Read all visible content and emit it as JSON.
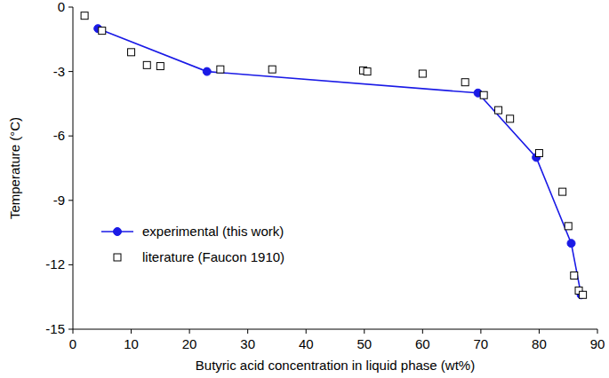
{
  "chart_data": {
    "type": "scatter",
    "x_label": "Butyric acid concentration in liquid phase (wt%)",
    "y_label": "Temperature (°C)",
    "xlim": [
      0,
      90
    ],
    "xticks": [
      0,
      10,
      20,
      30,
      40,
      50,
      60,
      70,
      80,
      90
    ],
    "ylim": [
      -15,
      0
    ],
    "yticks": [
      -15,
      -12,
      -9,
      -6,
      -3,
      0
    ],
    "grid": false,
    "legend": "lower left",
    "series": [
      {
        "name": "experimental (this work)",
        "type": "line",
        "marker": "circle",
        "line_style": "solid",
        "color": "#1a1ae6",
        "x": [
          4.3,
          23,
          69.5,
          79.5,
          85.5,
          87.2
        ],
        "values": [
          -1.0,
          -3.0,
          -4.0,
          -7.0,
          -11.0,
          -13.4
        ]
      },
      {
        "name": "literature (Faucon 1910)",
        "type": "scatter",
        "marker": "square",
        "color": "#000000",
        "x": [
          2,
          5,
          10,
          12.7,
          15,
          25.3,
          34.2,
          49.8,
          50.5,
          60,
          67.3,
          70.5,
          73,
          75,
          80,
          84,
          85,
          86,
          86.8,
          87.5
        ],
        "values": [
          -0.4,
          -1.1,
          -2.1,
          -2.7,
          -2.75,
          -2.9,
          -2.9,
          -2.95,
          -3.0,
          -3.1,
          -3.5,
          -4.1,
          -4.8,
          -5.2,
          -6.8,
          -8.6,
          -10.2,
          -12.5,
          -13.2,
          -13.4
        ]
      }
    ]
  }
}
